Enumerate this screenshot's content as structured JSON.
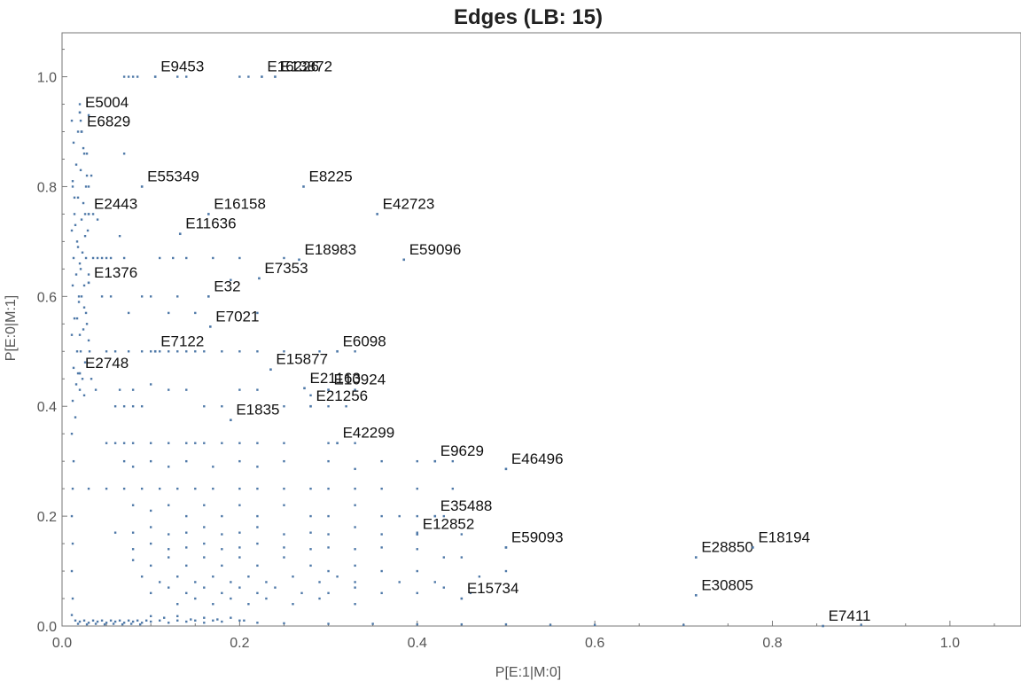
{
  "chart_data": {
    "type": "scatter",
    "title": "Edges (LB: 15)",
    "xlabel": "P[E:1|M:0]",
    "ylabel": "P[E:0|M:1]",
    "xlim": [
      0,
      1.08
    ],
    "ylim": [
      0,
      1.08
    ],
    "grid": false,
    "x_ticks": [
      0.0,
      0.2,
      0.4,
      0.6,
      0.8,
      1.0
    ],
    "y_ticks": [
      0.0,
      0.2,
      0.4,
      0.6,
      0.8,
      1.0
    ],
    "x_tick_labels": [
      "0.0",
      "0.2",
      "0.4",
      "0.6",
      "0.8",
      "1.0"
    ],
    "y_tick_labels": [
      "0.0",
      "0.2",
      "0.4",
      "0.6",
      "0.8",
      "1.0"
    ],
    "point_color": "#4f79a8",
    "annotated_points": [
      {
        "label": "E9453",
        "x": 0.105,
        "y": 1.0
      },
      {
        "label": "E16226",
        "x": 0.225,
        "y": 1.0
      },
      {
        "label": "E13872",
        "x": 0.24,
        "y": 1.0
      },
      {
        "label": "E5004",
        "x": 0.02,
        "y": 0.935
      },
      {
        "label": "E6829",
        "x": 0.022,
        "y": 0.9
      },
      {
        "label": "E55349",
        "x": 0.09,
        "y": 0.8
      },
      {
        "label": "E8225",
        "x": 0.272,
        "y": 0.8
      },
      {
        "label": "E42723",
        "x": 0.355,
        "y": 0.75
      },
      {
        "label": "E2443",
        "x": 0.03,
        "y": 0.75
      },
      {
        "label": "E16158",
        "x": 0.165,
        "y": 0.75
      },
      {
        "label": "E11636",
        "x": 0.133,
        "y": 0.714
      },
      {
        "label": "E18983",
        "x": 0.267,
        "y": 0.667
      },
      {
        "label": "E59096",
        "x": 0.385,
        "y": 0.667
      },
      {
        "label": "E7353",
        "x": 0.222,
        "y": 0.633
      },
      {
        "label": "E1376",
        "x": 0.03,
        "y": 0.625
      },
      {
        "label": "E32",
        "x": 0.165,
        "y": 0.6
      },
      {
        "label": "E7122",
        "x": 0.105,
        "y": 0.5
      },
      {
        "label": "E7021",
        "x": 0.167,
        "y": 0.545
      },
      {
        "label": "E6098",
        "x": 0.31,
        "y": 0.5
      },
      {
        "label": "E2748",
        "x": 0.02,
        "y": 0.46
      },
      {
        "label": "E15877",
        "x": 0.235,
        "y": 0.467
      },
      {
        "label": "E10924",
        "x": 0.3,
        "y": 0.43
      },
      {
        "label": "E21163",
        "x": 0.273,
        "y": 0.433
      },
      {
        "label": "E21256",
        "x": 0.28,
        "y": 0.4
      },
      {
        "label": "E1835",
        "x": 0.19,
        "y": 0.375
      },
      {
        "label": "E42299",
        "x": 0.31,
        "y": 0.333
      },
      {
        "label": "E9629",
        "x": 0.42,
        "y": 0.3
      },
      {
        "label": "E46496",
        "x": 0.5,
        "y": 0.286
      },
      {
        "label": "E35488",
        "x": 0.42,
        "y": 0.2
      },
      {
        "label": "E12852",
        "x": 0.4,
        "y": 0.167
      },
      {
        "label": "E59093",
        "x": 0.5,
        "y": 0.143
      },
      {
        "label": "E28850",
        "x": 0.714,
        "y": 0.125
      },
      {
        "label": "E18194",
        "x": 0.778,
        "y": 0.143
      },
      {
        "label": "E30805",
        "x": 0.714,
        "y": 0.056
      },
      {
        "label": "E15734",
        "x": 0.45,
        "y": 0.05
      },
      {
        "label": "E7411",
        "x": 0.857,
        "y": 0.0
      }
    ],
    "points": [
      [
        0.011,
        0.92
      ],
      [
        0.013,
        0.88
      ],
      [
        0.016,
        0.84
      ],
      [
        0.012,
        0.81
      ],
      [
        0.018,
        0.78
      ],
      [
        0.014,
        0.75
      ],
      [
        0.011,
        0.72
      ],
      [
        0.017,
        0.7
      ],
      [
        0.013,
        0.67
      ],
      [
        0.016,
        0.64
      ],
      [
        0.012,
        0.62
      ],
      [
        0.019,
        0.59
      ],
      [
        0.014,
        0.56
      ],
      [
        0.011,
        0.53
      ],
      [
        0.017,
        0.5
      ],
      [
        0.013,
        0.47
      ],
      [
        0.016,
        0.44
      ],
      [
        0.012,
        0.41
      ],
      [
        0.015,
        0.38
      ],
      [
        0.011,
        0.35
      ],
      [
        0.013,
        0.3
      ],
      [
        0.012,
        0.25
      ],
      [
        0.011,
        0.2
      ],
      [
        0.012,
        0.15
      ],
      [
        0.011,
        0.1
      ],
      [
        0.012,
        0.05
      ],
      [
        0.011,
        0.02
      ],
      [
        0.022,
        0.9
      ],
      [
        0.025,
        0.86
      ],
      [
        0.021,
        0.83
      ],
      [
        0.027,
        0.8
      ],
      [
        0.024,
        0.77
      ],
      [
        0.022,
        0.74
      ],
      [
        0.026,
        0.71
      ],
      [
        0.023,
        0.68
      ],
      [
        0.021,
        0.65
      ],
      [
        0.025,
        0.62
      ],
      [
        0.022,
        0.6
      ],
      [
        0.027,
        0.57
      ],
      [
        0.024,
        0.54
      ],
      [
        0.021,
        0.5
      ],
      [
        0.026,
        0.48
      ],
      [
        0.023,
        0.45
      ],
      [
        0.025,
        0.42
      ],
      [
        0.021,
        0.92
      ],
      [
        0.024,
        0.87
      ],
      [
        0.028,
        0.82
      ],
      [
        0.03,
        0.8
      ],
      [
        0.026,
        0.75
      ],
      [
        0.029,
        0.72
      ],
      [
        0.027,
        0.67
      ],
      [
        0.03,
        0.64
      ],
      [
        0.025,
        0.58
      ],
      [
        0.028,
        0.55
      ],
      [
        0.03,
        0.52
      ],
      [
        0.012,
        0.8
      ],
      [
        0.014,
        0.78
      ],
      [
        0.015,
        0.73
      ],
      [
        0.018,
        0.69
      ],
      [
        0.02,
        0.66
      ],
      [
        0.019,
        0.6
      ],
      [
        0.017,
        0.56
      ],
      [
        0.02,
        0.53
      ],
      [
        0.018,
        0.46
      ],
      [
        0.02,
        0.43
      ],
      [
        0.031,
        0.5
      ],
      [
        0.033,
        0.45
      ],
      [
        0.038,
        0.43
      ],
      [
        0.035,
        0.67
      ],
      [
        0.04,
        0.67
      ],
      [
        0.045,
        0.6
      ],
      [
        0.05,
        0.5
      ],
      [
        0.055,
        0.67
      ],
      [
        0.06,
        0.5
      ],
      [
        0.065,
        0.43
      ],
      [
        0.07,
        0.86
      ],
      [
        0.075,
        0.5
      ],
      [
        0.08,
        0.4
      ],
      [
        0.09,
        0.5
      ],
      [
        0.1,
        0.5
      ],
      [
        0.11,
        0.5
      ],
      [
        0.12,
        0.5
      ],
      [
        0.13,
        0.5
      ],
      [
        0.14,
        0.5
      ],
      [
        0.15,
        0.5
      ],
      [
        0.16,
        0.5
      ],
      [
        0.18,
        0.5
      ],
      [
        0.2,
        0.5
      ],
      [
        0.22,
        0.5
      ],
      [
        0.25,
        0.5
      ],
      [
        0.29,
        0.5
      ],
      [
        0.33,
        0.5
      ],
      [
        0.06,
        0.4
      ],
      [
        0.07,
        0.4
      ],
      [
        0.08,
        0.43
      ],
      [
        0.09,
        0.4
      ],
      [
        0.1,
        0.44
      ],
      [
        0.12,
        0.43
      ],
      [
        0.14,
        0.43
      ],
      [
        0.16,
        0.4
      ],
      [
        0.18,
        0.4
      ],
      [
        0.2,
        0.43
      ],
      [
        0.22,
        0.43
      ],
      [
        0.25,
        0.4
      ],
      [
        0.28,
        0.42
      ],
      [
        0.3,
        0.4
      ],
      [
        0.32,
        0.4
      ],
      [
        0.33,
        0.43
      ],
      [
        0.05,
        0.333
      ],
      [
        0.06,
        0.333
      ],
      [
        0.07,
        0.333
      ],
      [
        0.08,
        0.333
      ],
      [
        0.1,
        0.333
      ],
      [
        0.12,
        0.333
      ],
      [
        0.14,
        0.333
      ],
      [
        0.15,
        0.333
      ],
      [
        0.16,
        0.333
      ],
      [
        0.18,
        0.333
      ],
      [
        0.2,
        0.333
      ],
      [
        0.22,
        0.333
      ],
      [
        0.25,
        0.333
      ],
      [
        0.3,
        0.333
      ],
      [
        0.33,
        0.333
      ],
      [
        0.07,
        0.3
      ],
      [
        0.08,
        0.29
      ],
      [
        0.1,
        0.3
      ],
      [
        0.12,
        0.29
      ],
      [
        0.14,
        0.3
      ],
      [
        0.17,
        0.29
      ],
      [
        0.2,
        0.3
      ],
      [
        0.22,
        0.29
      ],
      [
        0.25,
        0.3
      ],
      [
        0.3,
        0.3
      ],
      [
        0.33,
        0.286
      ],
      [
        0.36,
        0.3
      ],
      [
        0.4,
        0.3
      ],
      [
        0.44,
        0.3
      ],
      [
        0.03,
        0.25
      ],
      [
        0.05,
        0.25
      ],
      [
        0.07,
        0.25
      ],
      [
        0.09,
        0.25
      ],
      [
        0.11,
        0.25
      ],
      [
        0.13,
        0.25
      ],
      [
        0.15,
        0.25
      ],
      [
        0.17,
        0.25
      ],
      [
        0.2,
        0.25
      ],
      [
        0.22,
        0.25
      ],
      [
        0.25,
        0.25
      ],
      [
        0.28,
        0.25
      ],
      [
        0.3,
        0.25
      ],
      [
        0.33,
        0.25
      ],
      [
        0.36,
        0.25
      ],
      [
        0.4,
        0.25
      ],
      [
        0.44,
        0.25
      ],
      [
        0.08,
        0.22
      ],
      [
        0.1,
        0.21
      ],
      [
        0.12,
        0.22
      ],
      [
        0.14,
        0.2
      ],
      [
        0.16,
        0.22
      ],
      [
        0.18,
        0.2
      ],
      [
        0.2,
        0.22
      ],
      [
        0.22,
        0.2
      ],
      [
        0.25,
        0.22
      ],
      [
        0.28,
        0.2
      ],
      [
        0.3,
        0.2
      ],
      [
        0.33,
        0.22
      ],
      [
        0.36,
        0.2
      ],
      [
        0.38,
        0.2
      ],
      [
        0.4,
        0.2
      ],
      [
        0.43,
        0.2
      ],
      [
        0.06,
        0.17
      ],
      [
        0.08,
        0.17
      ],
      [
        0.1,
        0.18
      ],
      [
        0.12,
        0.167
      ],
      [
        0.14,
        0.17
      ],
      [
        0.16,
        0.18
      ],
      [
        0.18,
        0.167
      ],
      [
        0.2,
        0.17
      ],
      [
        0.22,
        0.18
      ],
      [
        0.25,
        0.167
      ],
      [
        0.28,
        0.17
      ],
      [
        0.3,
        0.167
      ],
      [
        0.33,
        0.18
      ],
      [
        0.36,
        0.167
      ],
      [
        0.4,
        0.17
      ],
      [
        0.45,
        0.167
      ],
      [
        0.08,
        0.14
      ],
      [
        0.1,
        0.15
      ],
      [
        0.12,
        0.14
      ],
      [
        0.14,
        0.143
      ],
      [
        0.16,
        0.15
      ],
      [
        0.18,
        0.14
      ],
      [
        0.2,
        0.143
      ],
      [
        0.22,
        0.15
      ],
      [
        0.25,
        0.143
      ],
      [
        0.28,
        0.14
      ],
      [
        0.3,
        0.143
      ],
      [
        0.33,
        0.14
      ],
      [
        0.36,
        0.143
      ],
      [
        0.4,
        0.14
      ],
      [
        0.43,
        0.125
      ],
      [
        0.45,
        0.125
      ],
      [
        0.5,
        0.143
      ],
      [
        0.08,
        0.12
      ],
      [
        0.1,
        0.11
      ],
      [
        0.12,
        0.125
      ],
      [
        0.14,
        0.11
      ],
      [
        0.16,
        0.125
      ],
      [
        0.18,
        0.11
      ],
      [
        0.2,
        0.125
      ],
      [
        0.22,
        0.11
      ],
      [
        0.25,
        0.125
      ],
      [
        0.28,
        0.11
      ],
      [
        0.3,
        0.1
      ],
      [
        0.33,
        0.11
      ],
      [
        0.36,
        0.1
      ],
      [
        0.4,
        0.1
      ],
      [
        0.5,
        0.1
      ],
      [
        0.09,
        0.09
      ],
      [
        0.11,
        0.08
      ],
      [
        0.13,
        0.09
      ],
      [
        0.15,
        0.08
      ],
      [
        0.17,
        0.09
      ],
      [
        0.19,
        0.08
      ],
      [
        0.21,
        0.09
      ],
      [
        0.23,
        0.08
      ],
      [
        0.26,
        0.09
      ],
      [
        0.29,
        0.08
      ],
      [
        0.31,
        0.09
      ],
      [
        0.33,
        0.08
      ],
      [
        0.38,
        0.08
      ],
      [
        0.42,
        0.08
      ],
      [
        0.47,
        0.09
      ],
      [
        0.1,
        0.06
      ],
      [
        0.12,
        0.07
      ],
      [
        0.14,
        0.06
      ],
      [
        0.16,
        0.07
      ],
      [
        0.18,
        0.06
      ],
      [
        0.2,
        0.07
      ],
      [
        0.22,
        0.06
      ],
      [
        0.24,
        0.07
      ],
      [
        0.27,
        0.06
      ],
      [
        0.3,
        0.06
      ],
      [
        0.33,
        0.07
      ],
      [
        0.36,
        0.06
      ],
      [
        0.4,
        0.06
      ],
      [
        0.43,
        0.07
      ],
      [
        0.46,
        0.06
      ],
      [
        0.13,
        0.04
      ],
      [
        0.15,
        0.05
      ],
      [
        0.17,
        0.04
      ],
      [
        0.19,
        0.05
      ],
      [
        0.21,
        0.04
      ],
      [
        0.23,
        0.05
      ],
      [
        0.26,
        0.04
      ],
      [
        0.29,
        0.05
      ],
      [
        0.33,
        0.04
      ],
      [
        0.015,
        0.01
      ],
      [
        0.02,
        0.008
      ],
      [
        0.025,
        0.01
      ],
      [
        0.03,
        0.006
      ],
      [
        0.035,
        0.01
      ],
      [
        0.04,
        0.008
      ],
      [
        0.045,
        0.01
      ],
      [
        0.05,
        0.006
      ],
      [
        0.055,
        0.01
      ],
      [
        0.06,
        0.008
      ],
      [
        0.065,
        0.01
      ],
      [
        0.07,
        0.006
      ],
      [
        0.075,
        0.01
      ],
      [
        0.08,
        0.008
      ],
      [
        0.085,
        0.01
      ],
      [
        0.09,
        0.006
      ],
      [
        0.095,
        0.01
      ],
      [
        0.1,
        0.008
      ],
      [
        0.11,
        0.01
      ],
      [
        0.12,
        0.006
      ],
      [
        0.13,
        0.01
      ],
      [
        0.14,
        0.008
      ],
      [
        0.15,
        0.01
      ],
      [
        0.16,
        0.006
      ],
      [
        0.17,
        0.01
      ],
      [
        0.18,
        0.008
      ],
      [
        0.2,
        0.01
      ],
      [
        0.22,
        0.006
      ],
      [
        0.25,
        0.005
      ],
      [
        0.3,
        0.004
      ],
      [
        0.35,
        0.004
      ],
      [
        0.4,
        0.003
      ],
      [
        0.45,
        0.003
      ],
      [
        0.5,
        0.003
      ],
      [
        0.55,
        0.002
      ],
      [
        0.6,
        0.002
      ],
      [
        0.7,
        0.002
      ],
      [
        0.9,
        0.002
      ],
      [
        0.018,
        0.004
      ],
      [
        0.028,
        0.003
      ],
      [
        0.038,
        0.004
      ],
      [
        0.048,
        0.003
      ],
      [
        0.058,
        0.004
      ],
      [
        0.068,
        0.003
      ],
      [
        0.078,
        0.004
      ],
      [
        0.088,
        0.003
      ],
      [
        0.1,
        0.018
      ],
      [
        0.115,
        0.015
      ],
      [
        0.13,
        0.018
      ],
      [
        0.145,
        0.012
      ],
      [
        0.16,
        0.015
      ],
      [
        0.175,
        0.012
      ],
      [
        0.19,
        0.015
      ],
      [
        0.205,
        0.01
      ],
      [
        0.07,
        1.0
      ],
      [
        0.075,
        1.0
      ],
      [
        0.08,
        1.0
      ],
      [
        0.085,
        1.0
      ],
      [
        0.13,
        1.0
      ],
      [
        0.14,
        1.0
      ],
      [
        0.2,
        1.0
      ],
      [
        0.21,
        1.0
      ],
      [
        0.02,
        0.95
      ],
      [
        0.03,
        0.93
      ],
      [
        0.018,
        0.9
      ],
      [
        0.028,
        0.86
      ],
      [
        0.033,
        0.82
      ],
      [
        0.035,
        0.75
      ],
      [
        0.04,
        0.74
      ],
      [
        0.045,
        0.67
      ],
      [
        0.05,
        0.67
      ],
      [
        0.055,
        0.6
      ],
      [
        0.075,
        0.57
      ],
      [
        0.09,
        0.6
      ],
      [
        0.1,
        0.6
      ],
      [
        0.12,
        0.57
      ],
      [
        0.13,
        0.6
      ],
      [
        0.15,
        0.57
      ],
      [
        0.17,
        0.67
      ],
      [
        0.2,
        0.67
      ],
      [
        0.25,
        0.67
      ],
      [
        0.14,
        0.67
      ],
      [
        0.11,
        0.67
      ],
      [
        0.125,
        0.67
      ],
      [
        0.07,
        0.67
      ],
      [
        0.065,
        0.71
      ],
      [
        0.19,
        0.63
      ],
      [
        0.22,
        0.57
      ]
    ]
  }
}
